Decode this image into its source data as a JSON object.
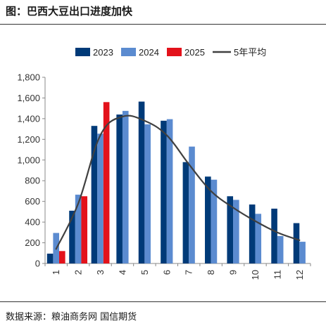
{
  "title": "图：巴西大豆出口进度加快",
  "source": "数据来源：粮油商务网   国信期货",
  "chart_data": {
    "type": "bar",
    "categories": [
      "1",
      "2",
      "3",
      "4",
      "5",
      "6",
      "7",
      "8",
      "9",
      "10",
      "11",
      "12"
    ],
    "series": [
      {
        "name": "2023",
        "type": "bar",
        "color": "#003a78",
        "values": [
          95,
          510,
          1330,
          1440,
          1565,
          1380,
          980,
          840,
          650,
          570,
          530,
          390
        ]
      },
      {
        "name": "2024",
        "type": "bar",
        "color": "#5b8bd0",
        "values": [
          295,
          665,
          1255,
          1475,
          1345,
          1395,
          1130,
          810,
          615,
          480,
          265,
          210
        ]
      },
      {
        "name": "2025",
        "type": "bar",
        "color": "#e3121b",
        "values": [
          120,
          650,
          1560,
          null,
          null,
          null,
          null,
          null,
          null,
          null,
          null,
          null
        ]
      },
      {
        "name": "5年平均",
        "type": "line",
        "color": "#404040",
        "values": [
          140,
          580,
          1240,
          1420,
          1380,
          1240,
          960,
          700,
          540,
          410,
          300,
          225
        ]
      }
    ],
    "yticks": [
      "0",
      "200",
      "400",
      "600",
      "800",
      "1,000",
      "1,200",
      "1,400",
      "1,600",
      "1,800"
    ],
    "ylim": [
      0,
      1800
    ],
    "xlabel": "",
    "ylabel": "",
    "grid": false,
    "legend_position": "top"
  }
}
